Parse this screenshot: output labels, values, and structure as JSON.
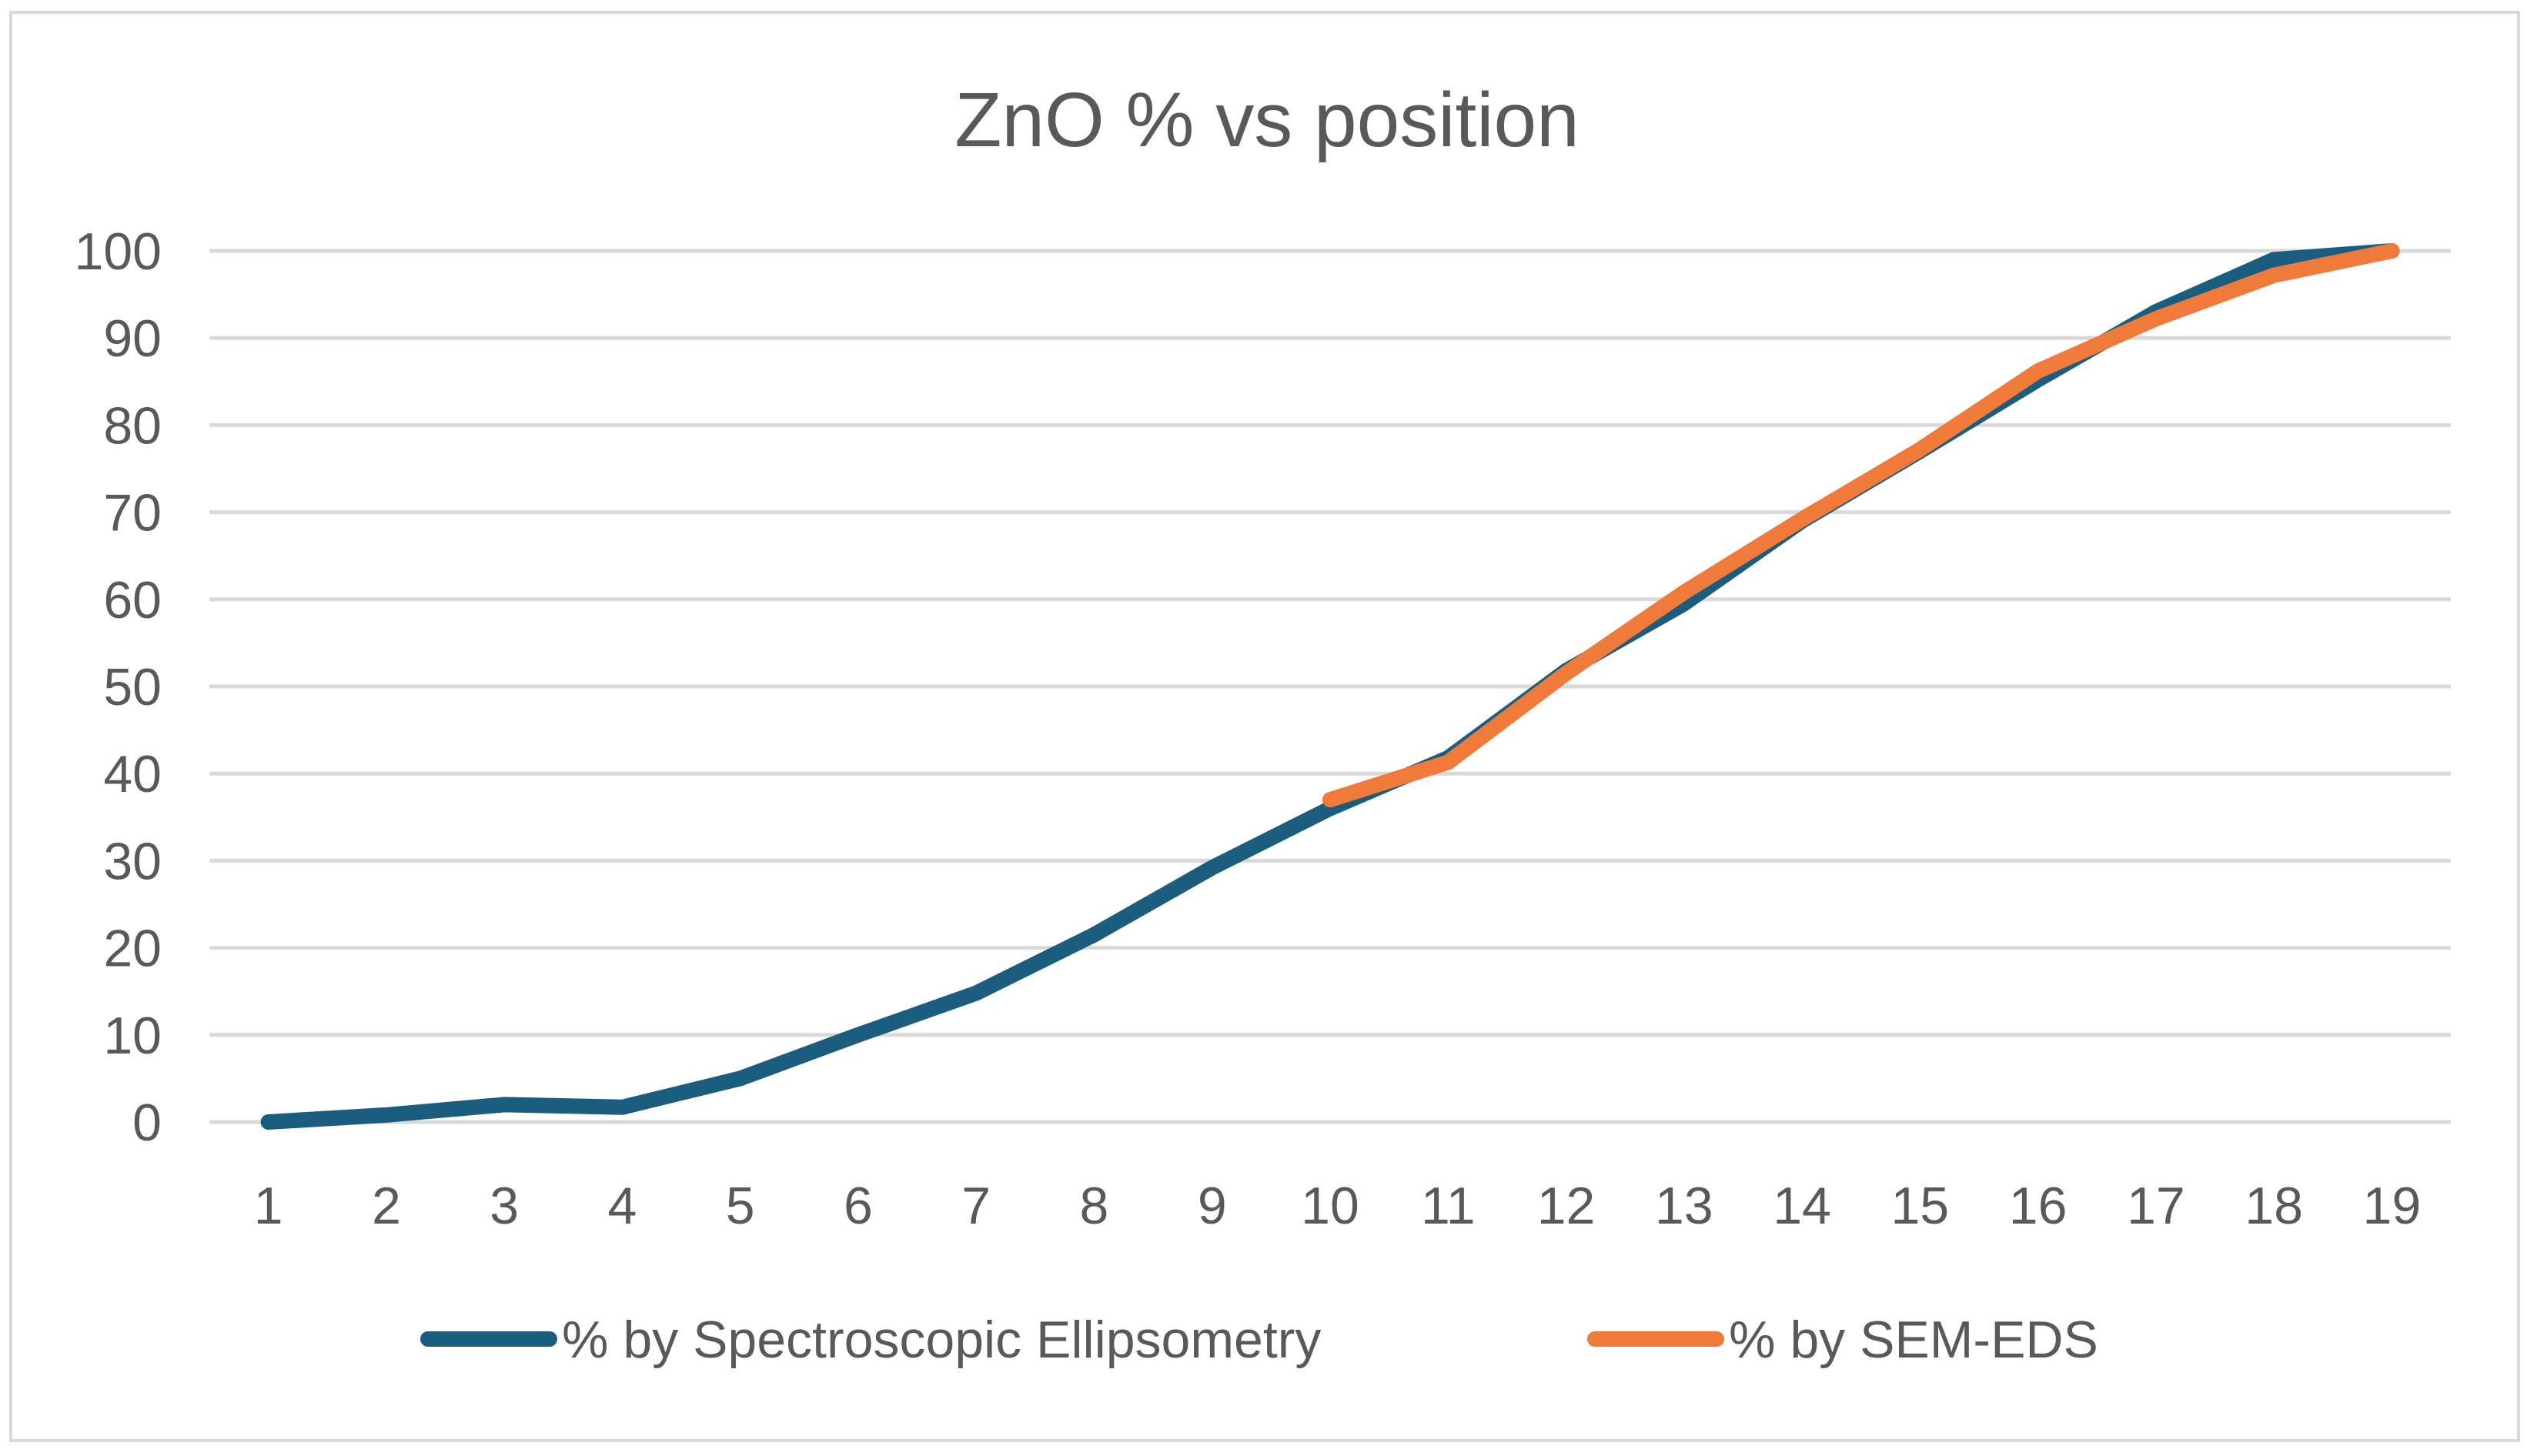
{
  "chart_data": {
    "type": "line",
    "title": "ZnO % vs position",
    "xlabel": "",
    "ylabel": "",
    "categories": [
      "1",
      "2",
      "3",
      "4",
      "5",
      "6",
      "7",
      "8",
      "9",
      "10",
      "11",
      "12",
      "13",
      "14",
      "15",
      "16",
      "17",
      "18",
      "19"
    ],
    "ylim": [
      0,
      100
    ],
    "yticks": [
      "0",
      "10",
      "20",
      "30",
      "40",
      "50",
      "60",
      "70",
      "80",
      "90",
      "100"
    ],
    "grid": true,
    "legend_position": "bottom",
    "series": [
      {
        "name": "% by Spectroscopic Ellipsometry",
        "color": "#1b5d7e",
        "values": [
          0,
          0.8,
          2,
          1.7,
          5,
          10,
          14.8,
          21.5,
          29.2,
          36,
          41.8,
          51.8,
          59.5,
          69,
          77,
          85.2,
          93,
          99,
          100
        ]
      },
      {
        "name": "% by SEM-EDS",
        "color": "#ef7a3a",
        "values": [
          null,
          null,
          null,
          null,
          null,
          null,
          null,
          null,
          null,
          37,
          41.3,
          51.5,
          60.8,
          69.2,
          77.2,
          86.2,
          92.2,
          97.2,
          100
        ]
      }
    ]
  }
}
